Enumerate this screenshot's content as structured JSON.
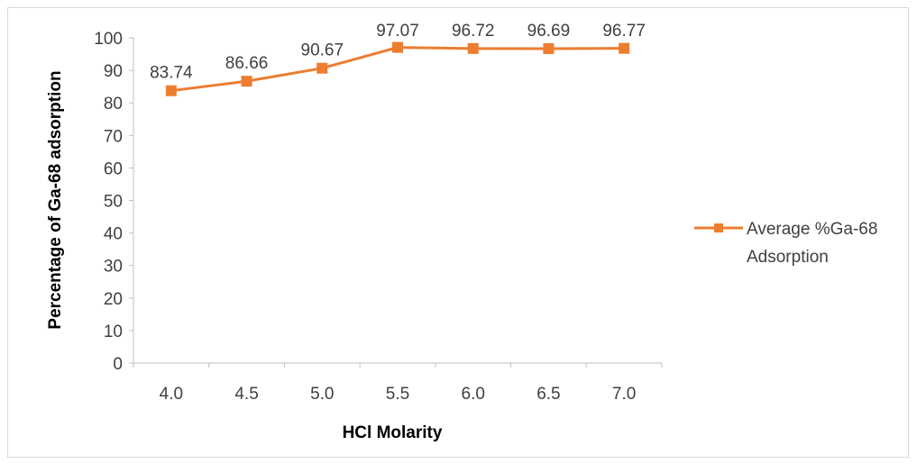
{
  "chart_data": {
    "type": "line",
    "categories": [
      "4.0",
      "4.5",
      "5.0",
      "5.5",
      "6.0",
      "6.5",
      "7.0"
    ],
    "series": [
      {
        "name": "Average %Ga-68 Adsorption",
        "values": [
          83.74,
          86.66,
          90.67,
          97.07,
          96.72,
          96.69,
          96.77
        ],
        "data_labels": [
          "83.74",
          "86.66",
          "90.67",
          "97.07",
          "96.72",
          "96.69",
          "96.77"
        ],
        "color": "#ed7d31",
        "marker": "square"
      }
    ],
    "title": "",
    "xlabel": "HCl Molarity",
    "ylabel": "Percentage of Ga-68 adsorption",
    "ylim": [
      0,
      100
    ],
    "ytick_step": 10,
    "grid": false,
    "legend": {
      "position": "right",
      "lines": [
        "Average %Ga-68",
        "Adsorption"
      ]
    }
  }
}
